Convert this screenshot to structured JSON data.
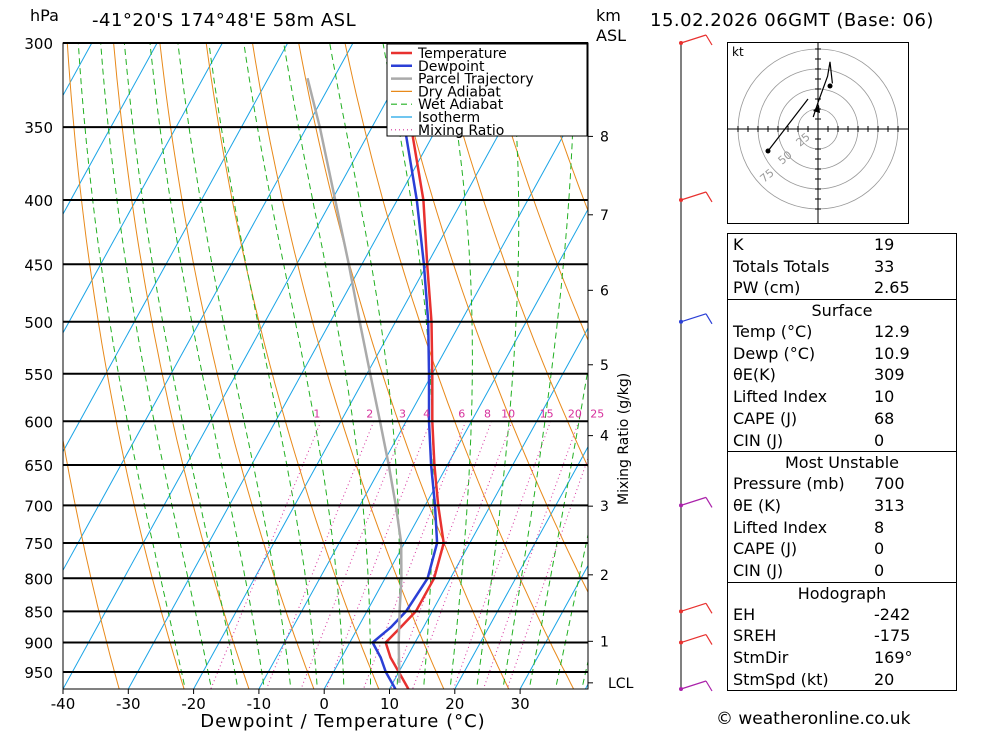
{
  "header": {
    "location": "-41°20'S  174°48'E  58m  ASL",
    "datetime": "15.02.2026  06GMT  (Base: 06)",
    "unit_hpa": "hPa",
    "unit_km": "km",
    "unit_asl": "ASL"
  },
  "legend": [
    "Temperature",
    "Dewpoint",
    "Parcel Trajectory",
    "Dry Adiabat",
    "Wet Adiabat",
    "Isotherm",
    "Mixing Ratio"
  ],
  "colors": {
    "temperature": "#e8312f",
    "dewpoint": "#2b3fd6",
    "parcel": "#aaaaaa",
    "dry_adiabat": "#e8891a",
    "wet_adiabat": "#22b022",
    "isotherm": "#1aa4e6",
    "mixing_ratio": "#d6309c"
  },
  "chart_data": {
    "type": "line",
    "title": "-41°20'S  174°48'E  58m  ASL",
    "xlabel": "Dewpoint / Temperature (°C)",
    "ylabel": "hPa",
    "xlim": [
      -40,
      40
    ],
    "ylim": [
      980,
      300
    ],
    "y_scale": "log",
    "grid": true,
    "legend_position": "top-right",
    "pressure_levels": [
      300,
      350,
      400,
      450,
      500,
      550,
      600,
      650,
      700,
      750,
      800,
      850,
      900,
      950
    ],
    "x_ticks": [
      -40,
      -30,
      -20,
      -10,
      0,
      10,
      20,
      30
    ],
    "height_km_ticks": [
      {
        "label": "8",
        "p": 356
      },
      {
        "label": "7",
        "p": 411
      },
      {
        "label": "6",
        "p": 472
      },
      {
        "label": "5",
        "p": 541
      },
      {
        "label": "4",
        "p": 616
      },
      {
        "label": "3",
        "p": 701
      },
      {
        "label": "2",
        "p": 795
      },
      {
        "label": "1",
        "p": 898
      },
      {
        "label": "LCL",
        "p": 969
      }
    ],
    "mixing_ratio_labels": [
      "1",
      "2",
      "3",
      "4",
      "6",
      "8",
      "10",
      "15",
      "20",
      "25"
    ],
    "mixing_ratio_axis_label": "Mixing Ratio (g/kg)",
    "series": [
      {
        "name": "Temperature",
        "points": [
          {
            "p": 980,
            "t": 12.9
          },
          {
            "p": 950,
            "t": 10
          },
          {
            "p": 925,
            "t": 7.5
          },
          {
            "p": 900,
            "t": 5.5
          },
          {
            "p": 875,
            "t": 6.5
          },
          {
            "p": 850,
            "t": 7.5
          },
          {
            "p": 800,
            "t": 7.5
          },
          {
            "p": 750,
            "t": 6
          },
          {
            "p": 700,
            "t": 2
          },
          {
            "p": 650,
            "t": -2
          },
          {
            "p": 600,
            "t": -6
          },
          {
            "p": 550,
            "t": -10
          },
          {
            "p": 500,
            "t": -14.5
          },
          {
            "p": 450,
            "t": -20
          },
          {
            "p": 400,
            "t": -26
          },
          {
            "p": 350,
            "t": -34
          },
          {
            "p": 300,
            "t": -43
          }
        ]
      },
      {
        "name": "Dewpoint",
        "points": [
          {
            "p": 980,
            "t": 10.9
          },
          {
            "p": 950,
            "t": 8
          },
          {
            "p": 925,
            "t": 6
          },
          {
            "p": 900,
            "t": 3.5
          },
          {
            "p": 875,
            "t": 5
          },
          {
            "p": 850,
            "t": 6
          },
          {
            "p": 800,
            "t": 6.5
          },
          {
            "p": 750,
            "t": 5
          },
          {
            "p": 700,
            "t": 1.5
          },
          {
            "p": 650,
            "t": -2.5
          },
          {
            "p": 600,
            "t": -6.5
          },
          {
            "p": 550,
            "t": -10.5
          },
          {
            "p": 500,
            "t": -15
          },
          {
            "p": 450,
            "t": -20.5
          },
          {
            "p": 400,
            "t": -27
          },
          {
            "p": 350,
            "t": -35
          },
          {
            "p": 300,
            "t": -44
          }
        ]
      },
      {
        "name": "Parcel Trajectory",
        "points": [
          {
            "p": 969,
            "t": 11
          },
          {
            "p": 900,
            "t": 7.5
          },
          {
            "p": 850,
            "t": 5
          },
          {
            "p": 800,
            "t": 2.5
          },
          {
            "p": 750,
            "t": -0.5
          },
          {
            "p": 700,
            "t": -4.5
          },
          {
            "p": 650,
            "t": -9
          },
          {
            "p": 600,
            "t": -14
          },
          {
            "p": 550,
            "t": -19.5
          },
          {
            "p": 500,
            "t": -25.5
          },
          {
            "p": 450,
            "t": -32
          },
          {
            "p": 400,
            "t": -39.5
          },
          {
            "p": 350,
            "t": -48
          },
          {
            "p": 320,
            "t": -54
          }
        ]
      }
    ]
  },
  "indices": {
    "general": [
      {
        "label": "K",
        "value": "19"
      },
      {
        "label": "Totals Totals",
        "value": "33"
      },
      {
        "label": "PW (cm)",
        "value": "2.65"
      }
    ],
    "surface_title": "Surface",
    "surface": [
      {
        "label": "Temp (°C)",
        "value": "12.9"
      },
      {
        "label": "Dewp (°C)",
        "value": "10.9"
      },
      {
        "label": "θE(K)",
        "value": "309"
      },
      {
        "label": "Lifted Index",
        "value": "10"
      },
      {
        "label": "CAPE (J)",
        "value": "68"
      },
      {
        "label": "CIN (J)",
        "value": "0"
      }
    ],
    "mu_title": "Most Unstable",
    "mu": [
      {
        "label": "Pressure (mb)",
        "value": "700"
      },
      {
        "label": "θE (K)",
        "value": "313"
      },
      {
        "label": "Lifted Index",
        "value": "8"
      },
      {
        "label": "CAPE (J)",
        "value": "0"
      },
      {
        "label": "CIN (J)",
        "value": "0"
      }
    ],
    "hodo_title": "Hodograph",
    "hodo": [
      {
        "label": "EH",
        "value": "-242"
      },
      {
        "label": "SREH",
        "value": "-175"
      },
      {
        "label": "StmDir",
        "value": "169°"
      },
      {
        "label": "StmSpd (kt)",
        "value": "20"
      }
    ]
  },
  "hodograph": {
    "unit": "kt",
    "ring_labels": [
      "25",
      "50",
      "75"
    ],
    "trace_kt": [
      [
        -4,
        10
      ],
      [
        0,
        22
      ],
      [
        8,
        44
      ],
      [
        10,
        56
      ],
      [
        12,
        38
      ]
    ],
    "storm_kt": [
      -2,
      14
    ]
  },
  "footer": "© weatheronline.co.uk"
}
